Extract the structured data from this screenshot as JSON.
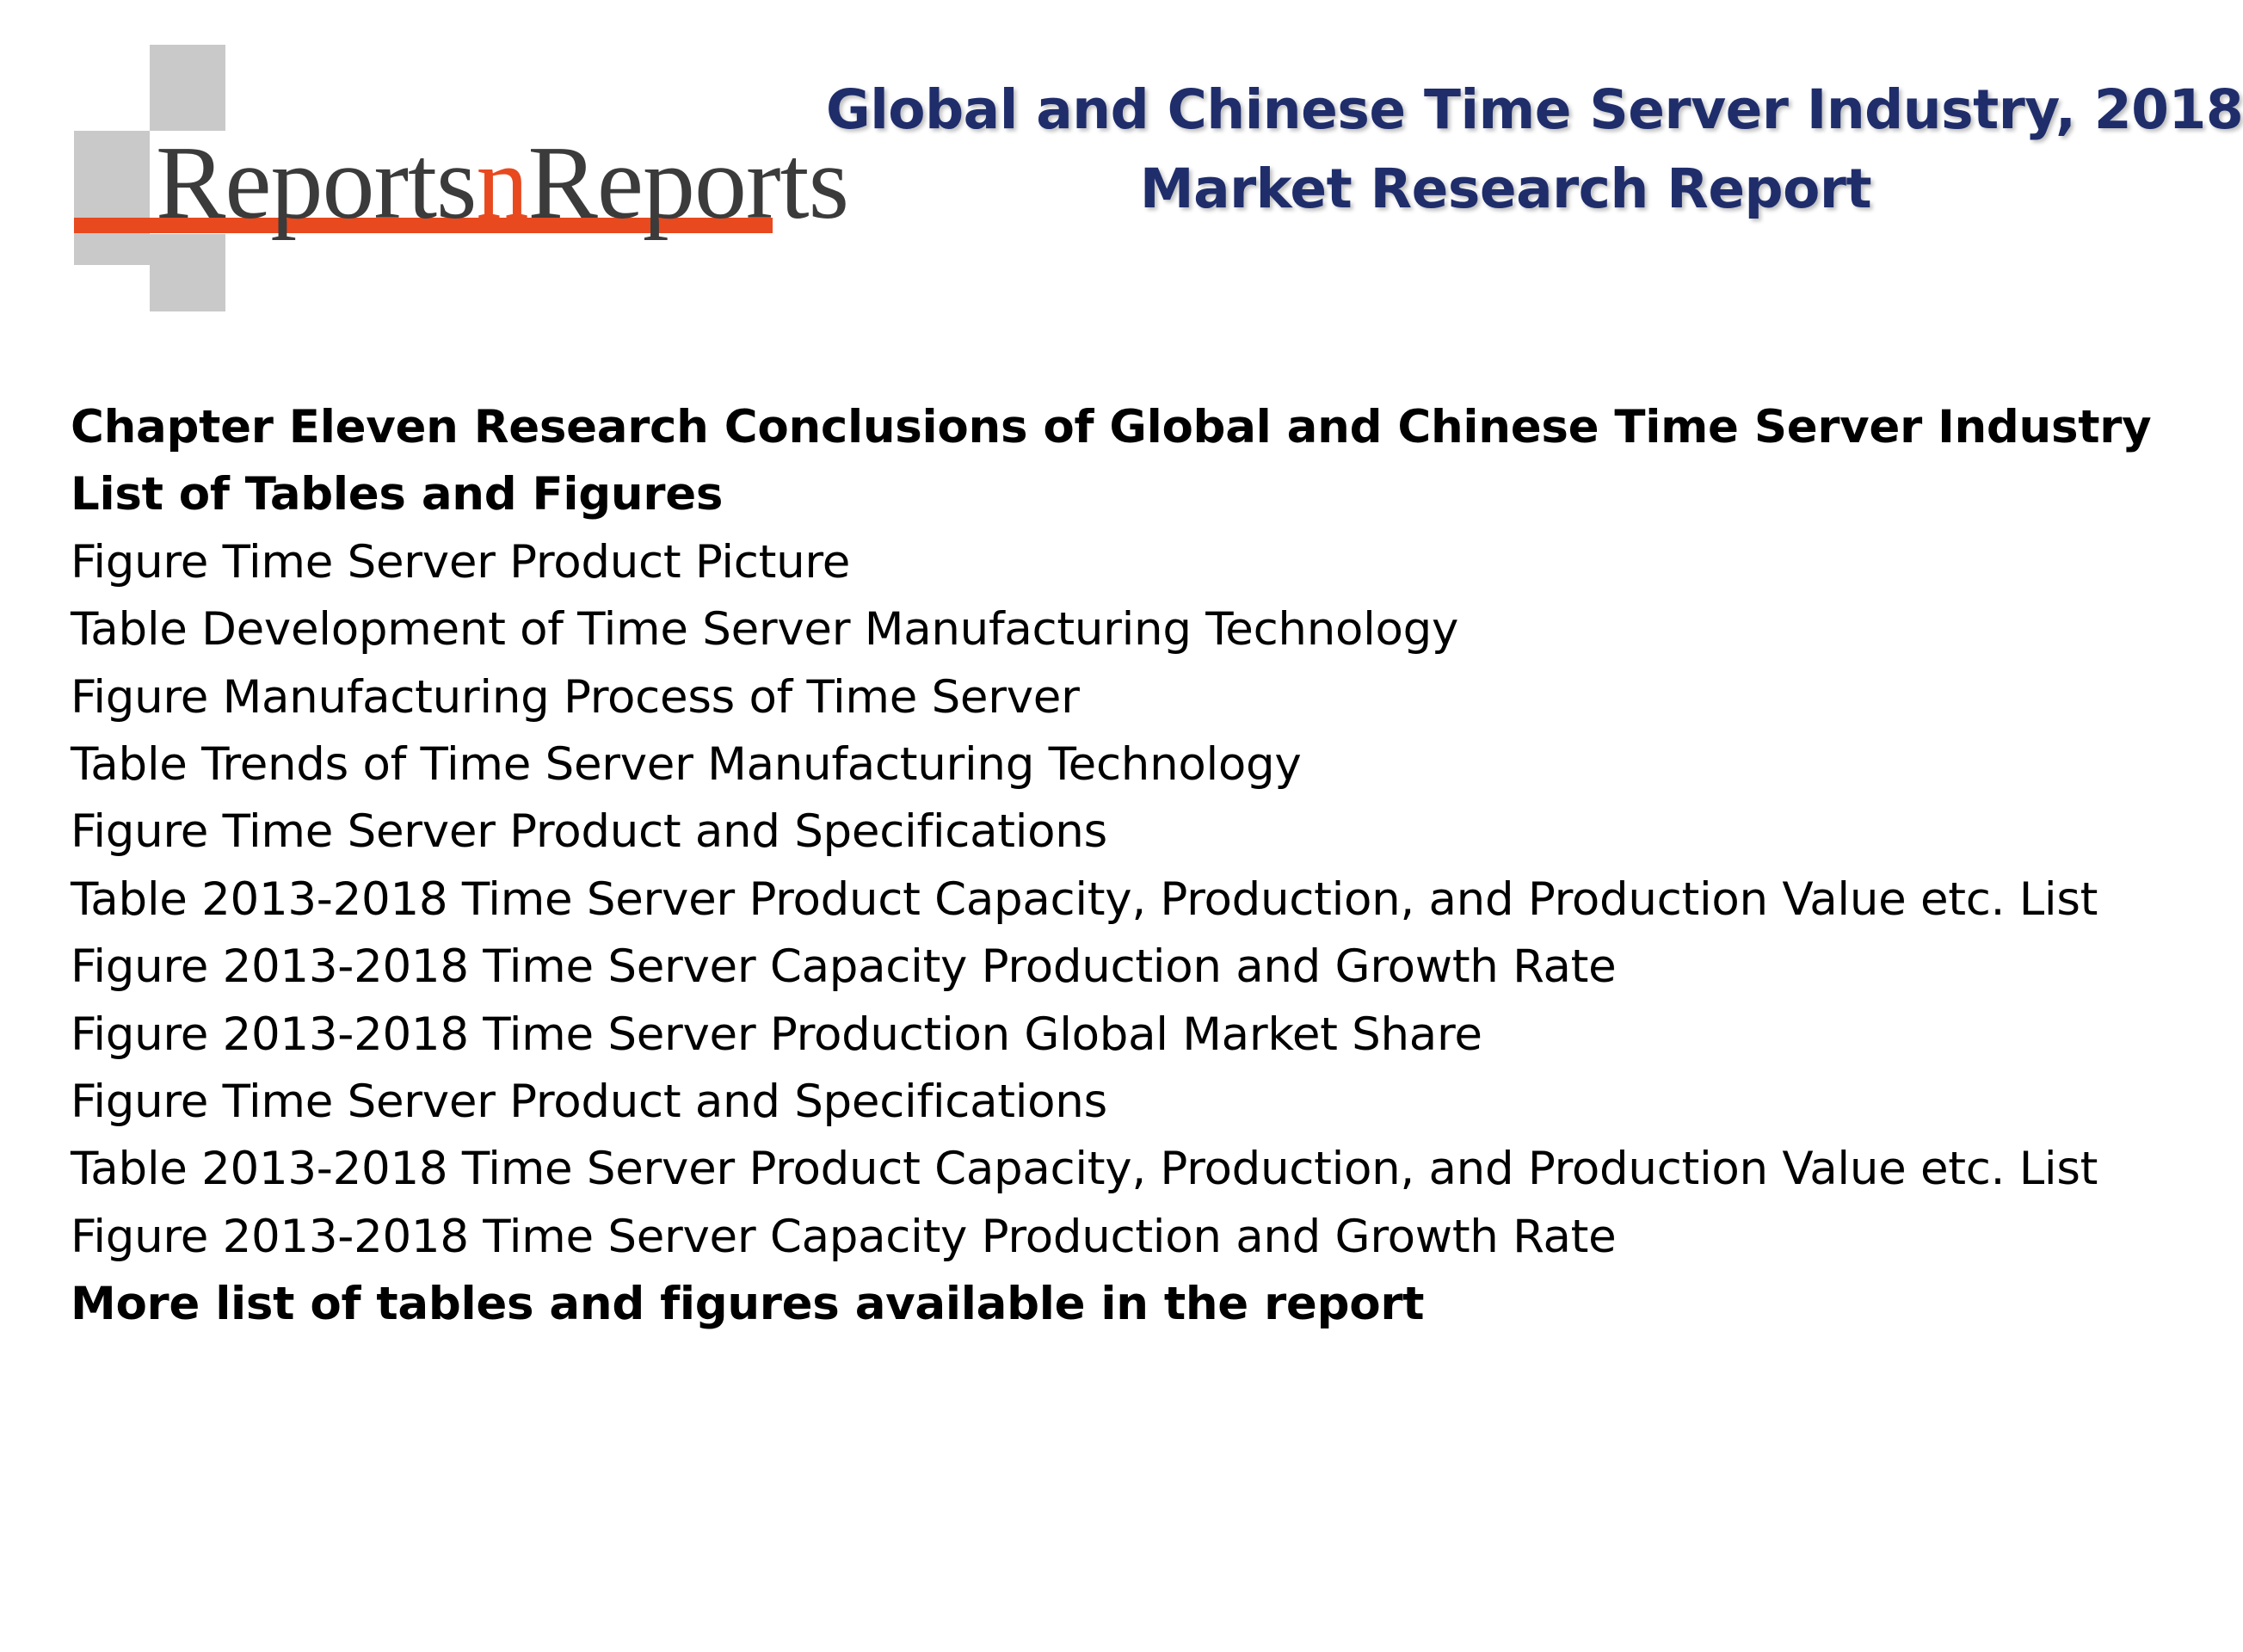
{
  "logo": {
    "name_part1": "Reports",
    "name_part2": "n",
    "name_part3": "Reports",
    "colors": {
      "accent": "#e8491e",
      "squares": "#c9c9c9",
      "text": "#3b3b3b"
    }
  },
  "title": {
    "line1": "Global and Chinese Time Server Industry, 2018",
    "line2": "Market Research Report",
    "color": "#1f2d6b"
  },
  "content": {
    "chapter_heading": "Chapter Eleven Research Conclusions of Global and Chinese Time Server Industry",
    "list_heading": "List of Tables and Figures",
    "items": [
      "Figure Time Server Product Picture",
      "Table Development of Time Server Manufacturing Technology",
      "Figure Manufacturing Process of Time Server",
      "Table Trends of Time Server Manufacturing Technology",
      "Figure Time Server Product and Specifications",
      "Table 2013-2018 Time Server Product Capacity, Production, and Production Value etc. List",
      "Figure 2013-2018 Time Server Capacity Production and Growth Rate",
      "Figure 2013-2018 Time Server Production Global Market Share",
      "Figure Time Server Product and Specifications",
      "Table 2013-2018 Time Server Product Capacity, Production, and Production Value etc. List",
      "Figure 2013-2018 Time Server Capacity Production and Growth Rate"
    ],
    "footer_note": "More list of tables and figures available in the report"
  }
}
